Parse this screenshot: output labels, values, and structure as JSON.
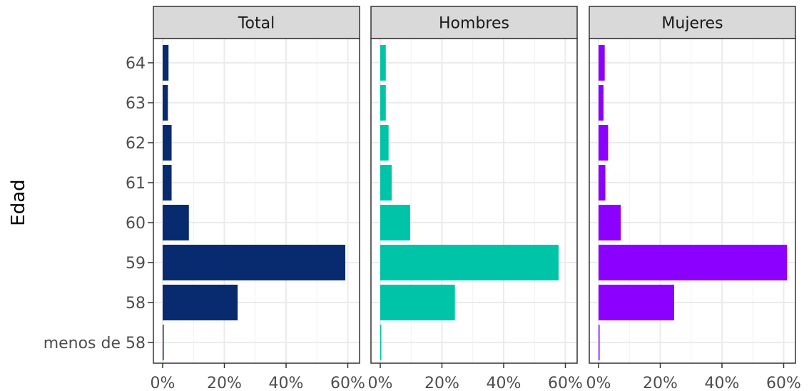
{
  "chart_data": {
    "type": "bar",
    "orientation": "horizontal",
    "ylabel": "Edad",
    "xlabel": "",
    "categories": [
      "menos de 58",
      "58",
      "59",
      "60",
      "61",
      "62",
      "63",
      "64"
    ],
    "x_ticks": [
      "0%",
      "20%",
      "40%",
      "60%"
    ],
    "xlim": [
      0,
      0.66
    ],
    "grid": true,
    "panels": [
      {
        "name": "Total",
        "color": "#072B6E",
        "values": [
          0.003,
          0.243,
          0.592,
          0.085,
          0.029,
          0.029,
          0.017,
          0.019
        ]
      },
      {
        "name": "Hombres",
        "color": "#00C4A8",
        "values": [
          0.002,
          0.242,
          0.578,
          0.097,
          0.037,
          0.027,
          0.018,
          0.018
        ]
      },
      {
        "name": "Mujeres",
        "color": "#8B00FF",
        "values": [
          0.003,
          0.245,
          0.611,
          0.072,
          0.022,
          0.031,
          0.016,
          0.02
        ]
      }
    ]
  }
}
